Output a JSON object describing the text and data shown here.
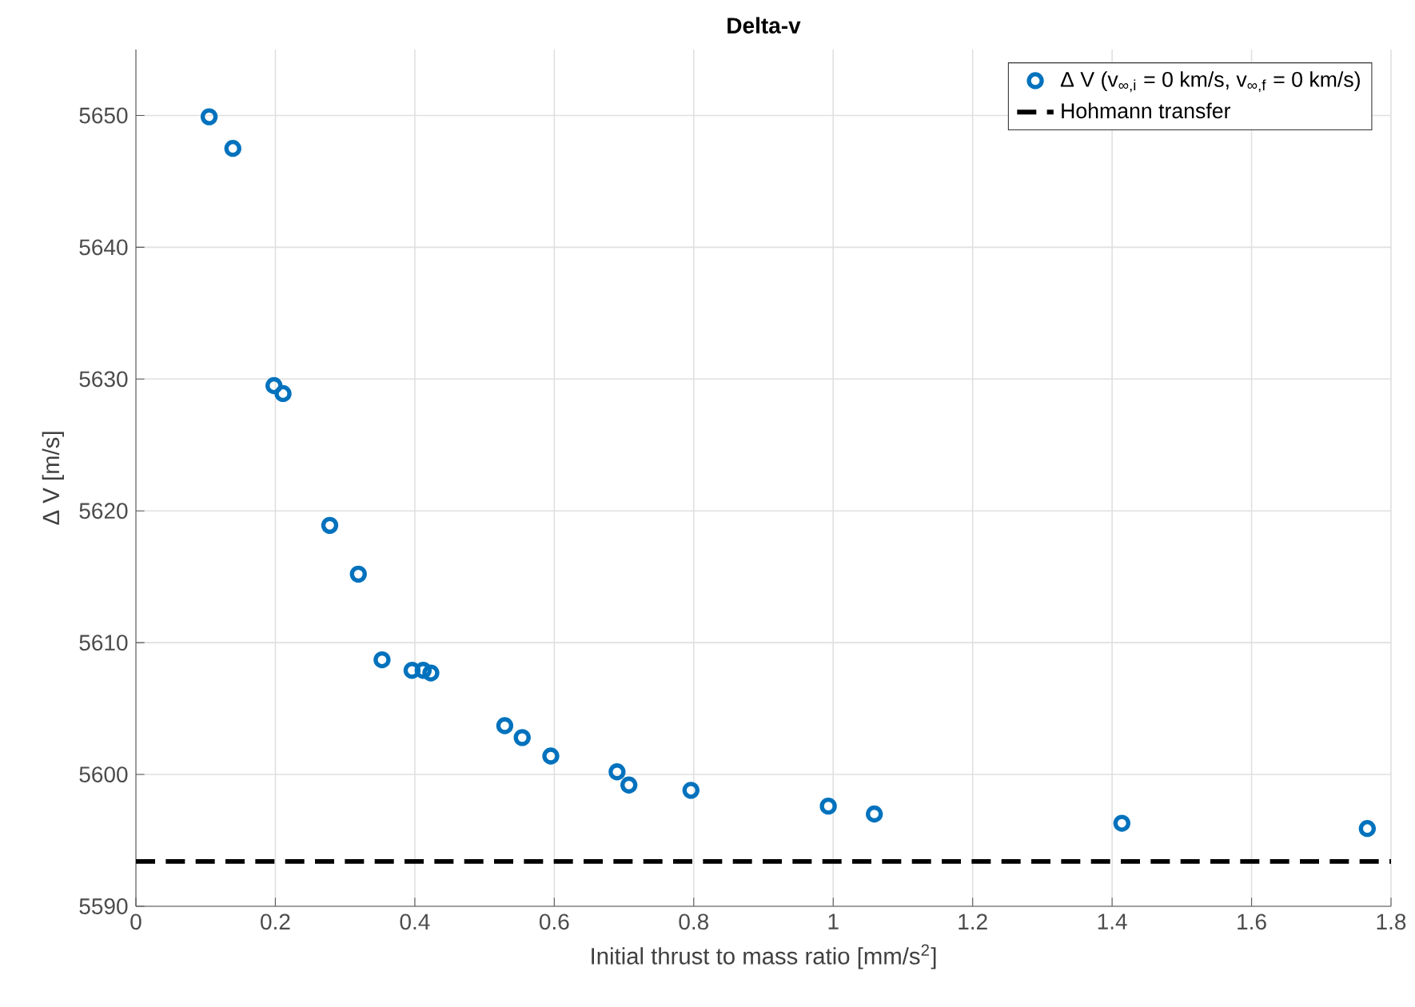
{
  "chart_data": {
    "type": "scatter",
    "title": "Delta-v",
    "xlabel": "Initial thrust to mass ratio [mm/s$^{2}$]",
    "ylabel": "Δ V [m/s]",
    "xlim": [
      0,
      1.8
    ],
    "ylim": [
      5590,
      5655
    ],
    "xticks": [
      0,
      0.2,
      0.4,
      0.6,
      0.8,
      1,
      1.2,
      1.4,
      1.6,
      1.8
    ],
    "yticks": [
      5590,
      5600,
      5610,
      5620,
      5630,
      5640,
      5650
    ],
    "grid": true,
    "legend": "top right",
    "marker": "circle",
    "series": [
      {
        "name": "Δ V (v$_{∞,i}$ = 0 km/s, v$_{∞,f}$ = 0 km/s)",
        "color": "#0072bd",
        "x": [
          0.105,
          0.139,
          0.198,
          0.211,
          0.278,
          0.319,
          0.353,
          0.396,
          0.412,
          0.423,
          0.529,
          0.554,
          0.595,
          0.69,
          0.707,
          0.796,
          0.993,
          1.059,
          1.414,
          1.766
        ],
        "values": [
          5649.9,
          5647.5,
          5629.5,
          5628.9,
          5618.9,
          5615.2,
          5608.7,
          5607.9,
          5607.9,
          5607.7,
          5603.7,
          5602.8,
          5601.4,
          5600.2,
          5599.2,
          5598.8,
          5597.6,
          5597.0,
          5596.3,
          5595.9
        ]
      }
    ],
    "ref_lines": [
      {
        "axis": "y",
        "value": 5593.4,
        "label": "Hohmann transfer",
        "color": "#000000",
        "line_style": "dashed"
      }
    ]
  }
}
